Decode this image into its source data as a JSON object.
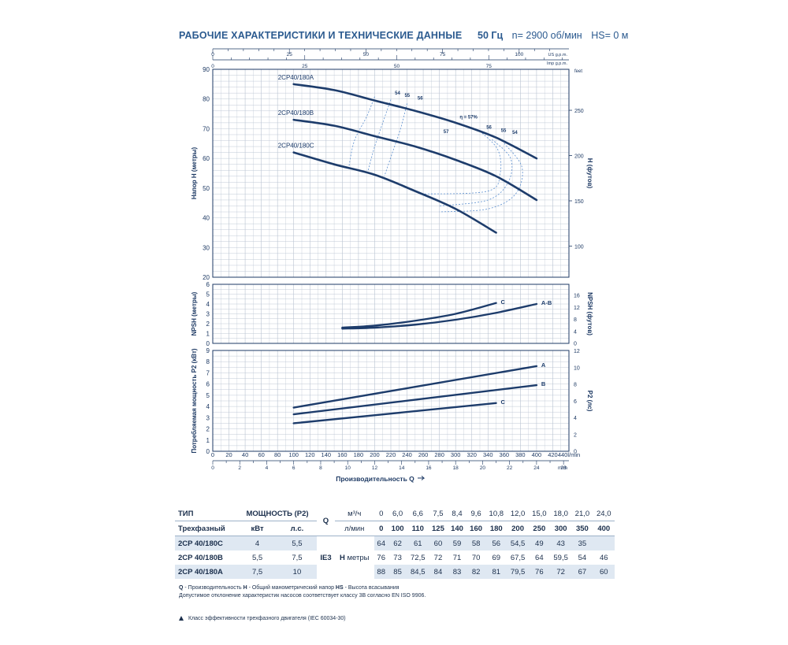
{
  "header": {
    "title": "РАБОЧИЕ ХАРАКТЕРИСТИКИ И ТЕХНИЧЕСКИЕ ДАННЫЕ",
    "freq": "50 Гц",
    "speed": "n= 2900 об/мин",
    "hs": "HS= 0 м"
  },
  "chart_data": [
    {
      "type": "line",
      "name": "head",
      "ylabel": "Напор H (метры)",
      "y2label": "H (футов)",
      "xlim": [
        0,
        440
      ],
      "ylim": [
        20,
        90
      ],
      "yticks": [
        20,
        30,
        40,
        50,
        60,
        70,
        80,
        90
      ],
      "y2ticks": [
        100,
        150,
        200,
        250
      ],
      "y2unit": "feet",
      "top_axes": [
        {
          "unit": "US g.p.m.",
          "ticks": [
            0,
            25,
            50,
            75,
            100
          ]
        },
        {
          "unit": "Imp g.p.m.",
          "ticks": [
            0,
            25,
            50,
            75
          ]
        }
      ],
      "series": [
        {
          "name": "2CP40/180A",
          "x": [
            100,
            150,
            200,
            250,
            300,
            350,
            400
          ],
          "y": [
            85,
            83,
            79.5,
            76,
            72,
            67,
            60
          ]
        },
        {
          "name": "2CP40/180B",
          "x": [
            100,
            150,
            200,
            250,
            300,
            350,
            400
          ],
          "y": [
            73,
            71,
            67.5,
            64,
            59.5,
            54,
            46
          ]
        },
        {
          "name": "2CP40/180C",
          "x": [
            100,
            150,
            200,
            250,
            300,
            350
          ],
          "y": [
            62,
            58,
            54.5,
            49,
            43,
            35
          ]
        }
      ],
      "efficiency_labels": [
        "54",
        "55",
        "56",
        "η = 57%",
        "57",
        "56",
        "55",
        "54"
      ]
    },
    {
      "type": "line",
      "name": "npsh",
      "ylabel": "NPSH (метры)",
      "y2label": "NPSH (футов)",
      "ylim": [
        0,
        6
      ],
      "yticks": [
        0,
        1,
        2,
        3,
        4,
        5,
        6
      ],
      "y2ticks": [
        0,
        4,
        8,
        12,
        16
      ],
      "series": [
        {
          "name": "C",
          "x": [
            160,
            200,
            250,
            300,
            350
          ],
          "y": [
            1.6,
            1.8,
            2.3,
            3.0,
            4.1
          ]
        },
        {
          "name": "A-B",
          "x": [
            160,
            200,
            250,
            300,
            350,
            400
          ],
          "y": [
            1.5,
            1.6,
            1.9,
            2.4,
            3.1,
            4.0
          ]
        }
      ]
    },
    {
      "type": "line",
      "name": "power",
      "ylabel": "Потребляемая мощность P2 (кВт)",
      "y2label": "P2 (лс)",
      "ylim": [
        0,
        9
      ],
      "yticks": [
        0,
        1,
        2,
        3,
        4,
        5,
        6,
        7,
        8,
        9
      ],
      "y2ticks": [
        0,
        2,
        4,
        6,
        8,
        10,
        12
      ],
      "xticks": [
        0,
        20,
        40,
        60,
        80,
        100,
        120,
        140,
        160,
        180,
        200,
        220,
        240,
        260,
        280,
        300,
        320,
        340,
        360,
        380,
        400,
        420,
        440
      ],
      "x_last_label": "440l/min",
      "x2ticks": [
        0,
        2,
        4,
        6,
        8,
        10,
        12,
        14,
        16,
        18,
        20,
        22,
        24,
        26
      ],
      "x2unit": "m³/h",
      "xlabel": "Производительность Q",
      "series": [
        {
          "name": "A",
          "x": [
            100,
            400
          ],
          "y": [
            3.9,
            7.6
          ]
        },
        {
          "name": "B",
          "x": [
            100,
            400
          ],
          "y": [
            3.3,
            5.9
          ]
        },
        {
          "name": "C",
          "x": [
            100,
            350
          ],
          "y": [
            2.5,
            4.3
          ]
        }
      ]
    }
  ],
  "table": {
    "h_type": "ТИП",
    "h_power": "МОЩНОСТЬ (P2)",
    "h_q": "Q",
    "h_m3h": "м³/ч",
    "h_lmin": "л/мин",
    "h_threephase": "Трехфазный",
    "h_kw": "кВт",
    "h_hp": "л.с.",
    "h_ie": "IE3",
    "h_h": "H",
    "h_m": "метры",
    "q_m3h": [
      "0",
      "6,0",
      "6,6",
      "7,5",
      "8,4",
      "9,6",
      "10,8",
      "12,0",
      "15,0",
      "18,0",
      "21,0",
      "24,0"
    ],
    "q_lmin": [
      "0",
      "100",
      "110",
      "125",
      "140",
      "160",
      "180",
      "200",
      "250",
      "300",
      "350",
      "400"
    ],
    "rows": [
      {
        "model": "2CP 40/180C",
        "kw": "4",
        "hp": "5,5",
        "h": [
          "64",
          "62",
          "61",
          "60",
          "59",
          "58",
          "56",
          "54,5",
          "49",
          "43",
          "35",
          ""
        ]
      },
      {
        "model": "2CP 40/180B",
        "kw": "5,5",
        "hp": "7,5",
        "h": [
          "76",
          "73",
          "72,5",
          "72",
          "71",
          "70",
          "69",
          "67,5",
          "64",
          "59,5",
          "54",
          "46"
        ]
      },
      {
        "model": "2CP 40/180A",
        "kw": "7,5",
        "hp": "10",
        "h": [
          "88",
          "85",
          "84,5",
          "84",
          "83",
          "82",
          "81",
          "79,5",
          "76",
          "72",
          "67",
          "60"
        ]
      }
    ]
  },
  "notes": {
    "q_key": "Q",
    "q_text": " - Производительность  ",
    "h_key": "H",
    "h_text": " - Общий манометрический напор  ",
    "hs_key": "HS",
    "hs_text": " - Высота всасывания",
    "line2": "Допустимое отклонение характеристик насосов соответствует классу 3B согласно EN ISO 9906.",
    "footnote": "Класс эффективности трехфазного двигателя (IEC 60034-30)"
  }
}
